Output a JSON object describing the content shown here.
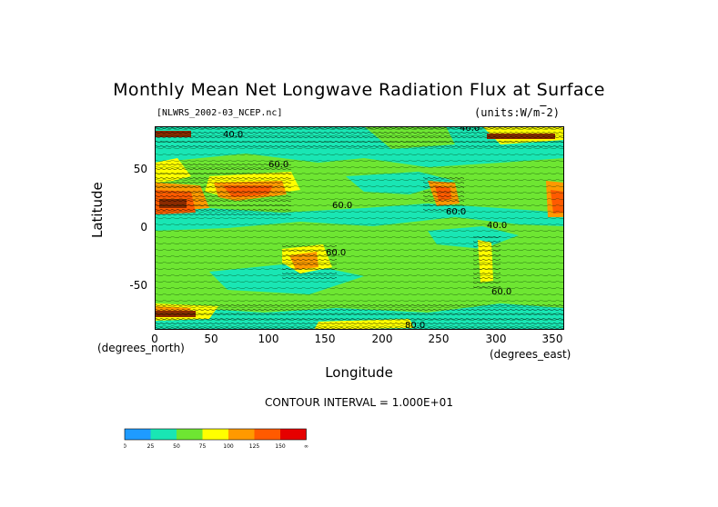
{
  "title": "Monthly Mean Net Longwave Radiation Flux at Surface",
  "file_label": "[NLWRS_2002-03_NCEP.nc]",
  "units_label": "(units:W/m^-2)",
  "contour_interval": "CONTOUR INTERVAL = 1.000E+01",
  "x_unit_label": "(degrees_north)",
  "x_unit_label_right": "(degrees_east)",
  "chart_data": {
    "type": "heatmap",
    "title": "Monthly Mean Net Longwave Radiation Flux at Surface",
    "xlabel": "Longitude",
    "ylabel": "Latitude",
    "xlim": [
      0,
      360
    ],
    "ylim": [
      -90,
      90
    ],
    "x_ticks": [
      "0",
      "50",
      "100",
      "150",
      "200",
      "250",
      "300",
      "350"
    ],
    "y_ticks": [
      "50",
      "0",
      "-50"
    ],
    "colorbar": {
      "ticks": [
        "0",
        "25",
        "50",
        "75",
        "100",
        "125",
        "150",
        "∞"
      ],
      "colors": [
        "#1e9bff",
        "#19e6b4",
        "#6ee632",
        "#ffff00",
        "#ff9900",
        "#ff5a00",
        "#e60000"
      ]
    },
    "contour_labels": [
      "40.0",
      "60.0",
      "60.0",
      "60.0",
      "40.0",
      "60.0",
      "60.0",
      "80.0",
      "40.0"
    ]
  }
}
